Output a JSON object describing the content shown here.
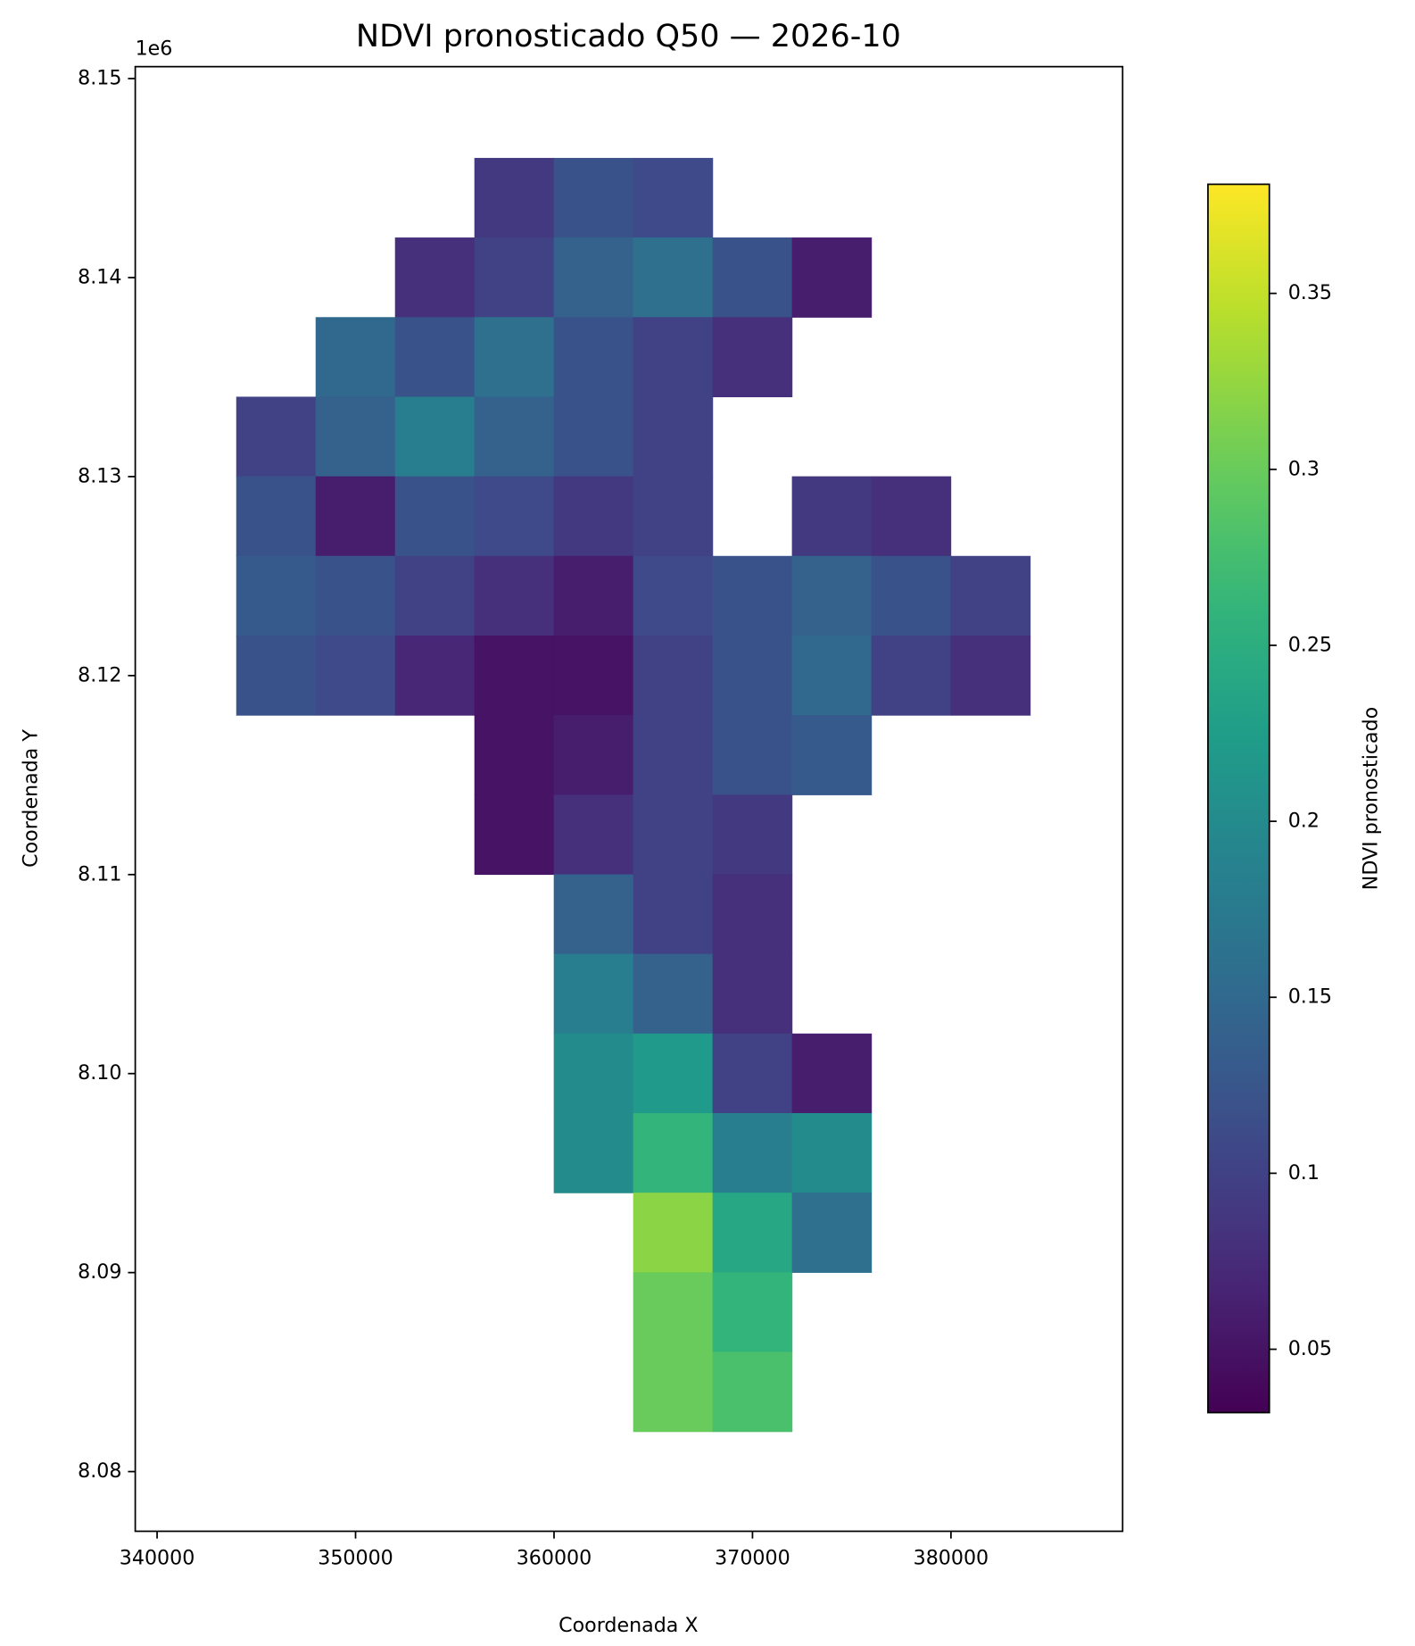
{
  "chart_data": {
    "type": "raster",
    "title": "NDVI pronosticado Q50 — 2026-10",
    "x_label": "Coordenada X",
    "y_label": "Coordenada Y",
    "y_offset_label": "1e6",
    "colorbar_label": "NDVI pronosticado",
    "colormap": "viridis",
    "clim": [
      0.032,
      0.381
    ],
    "colorbar_ticks": [
      0.05,
      0.1,
      0.15,
      0.2,
      0.25,
      0.3,
      0.35
    ],
    "xlim": [
      338900,
      388650
    ],
    "ylim": [
      8077000,
      8150600
    ],
    "xticks": [
      340000,
      350000,
      360000,
      370000,
      380000
    ],
    "yticks": [
      {
        "value": 8080000,
        "label": "8.08"
      },
      {
        "value": 8090000,
        "label": "8.09"
      },
      {
        "value": 8100000,
        "label": "8.10"
      },
      {
        "value": 8110000,
        "label": "8.11"
      },
      {
        "value": 8120000,
        "label": "8.12"
      },
      {
        "value": 8130000,
        "label": "8.13"
      },
      {
        "value": 8140000,
        "label": "8.14"
      },
      {
        "value": 8150000,
        "label": "8.15"
      }
    ],
    "x_edges": [
      344000,
      348000,
      352000,
      356000,
      360000,
      364000,
      368000,
      372000,
      376000,
      380000,
      384000
    ],
    "y_edges": [
      8146000,
      8142000,
      8138000,
      8134000,
      8130000,
      8126000,
      8122000,
      8118000,
      8114000,
      8110000,
      8106000,
      8102000,
      8098000,
      8094000,
      8090000,
      8086000,
      8082000
    ],
    "values": [
      [
        null,
        null,
        null,
        0.09,
        0.12,
        0.11,
        null,
        null,
        null,
        null
      ],
      [
        null,
        null,
        0.08,
        0.1,
        0.14,
        0.16,
        0.12,
        0.06,
        null,
        null
      ],
      [
        null,
        0.15,
        0.12,
        0.16,
        0.12,
        0.1,
        0.08,
        null,
        null,
        null
      ],
      [
        0.1,
        0.14,
        0.18,
        0.14,
        0.12,
        0.1,
        null,
        null,
        null,
        null
      ],
      [
        0.12,
        0.06,
        0.12,
        0.11,
        0.09,
        0.1,
        null,
        0.09,
        0.08,
        null
      ],
      [
        0.13,
        0.12,
        0.1,
        0.08,
        0.06,
        0.11,
        0.12,
        0.14,
        0.12,
        0.1
      ],
      [
        0.12,
        0.11,
        0.07,
        0.05,
        0.05,
        0.1,
        0.12,
        0.15,
        0.1,
        0.08
      ],
      [
        null,
        null,
        null,
        0.05,
        0.06,
        0.1,
        0.12,
        0.13,
        null,
        null
      ],
      [
        null,
        null,
        null,
        0.05,
        0.08,
        0.1,
        0.09,
        null,
        null,
        null
      ],
      [
        null,
        null,
        null,
        null,
        0.14,
        0.1,
        0.08,
        null,
        null,
        null
      ],
      [
        null,
        null,
        null,
        null,
        0.18,
        0.14,
        0.08,
        null,
        null,
        null
      ],
      [
        null,
        null,
        null,
        null,
        0.2,
        0.22,
        0.1,
        0.06,
        null,
        null
      ],
      [
        null,
        null,
        null,
        null,
        0.2,
        0.26,
        0.18,
        0.2,
        null,
        null
      ],
      [
        null,
        null,
        null,
        null,
        null,
        0.32,
        0.24,
        0.16,
        null,
        null
      ],
      [
        null,
        null,
        null,
        null,
        null,
        0.3,
        0.26,
        null,
        null,
        null
      ],
      [
        null,
        null,
        null,
        null,
        null,
        0.3,
        0.28,
        null,
        null,
        null
      ]
    ]
  }
}
